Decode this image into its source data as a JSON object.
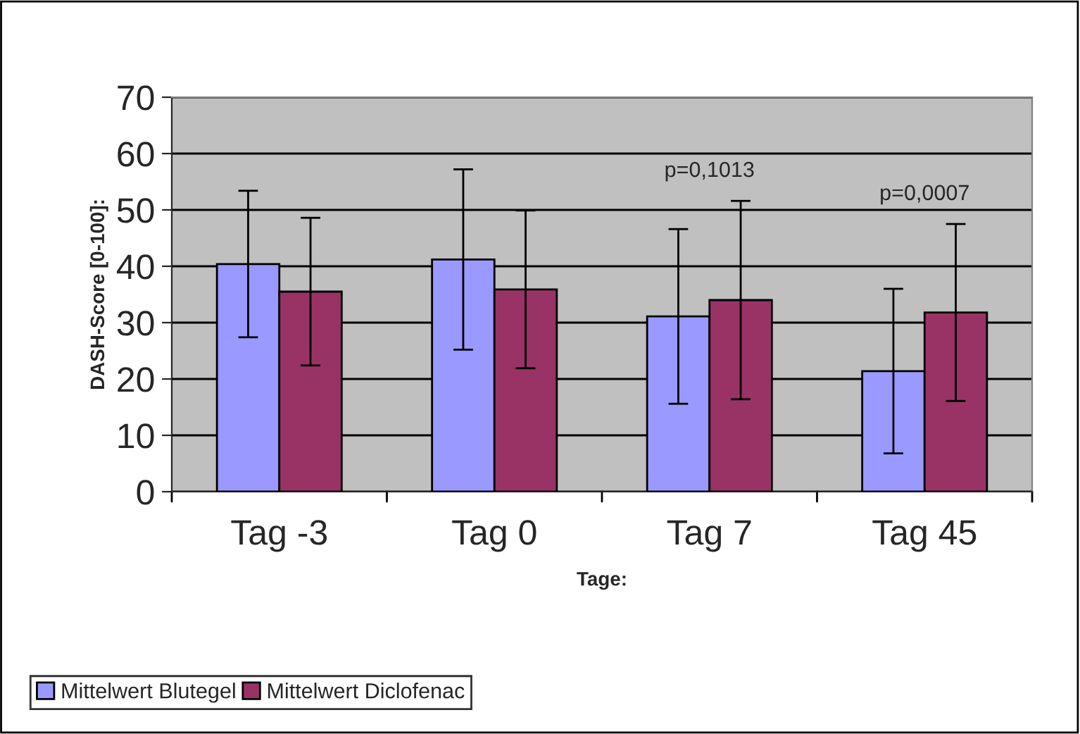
{
  "chart_data": {
    "type": "bar",
    "xlabel": "Tage:",
    "ylabel": "DASH-Score [0-100]:",
    "categories": [
      "Tag -3",
      "Tag 0",
      "Tag 7",
      "Tag 45"
    ],
    "series": [
      {
        "name": "Mittelwert Blutegel",
        "color": "#9999ff",
        "values": [
          40.4,
          41.2,
          31.1,
          21.4
        ],
        "errors": [
          13,
          16,
          15.5,
          14.6
        ]
      },
      {
        "name": "Mittelwert Diclofenac",
        "color": "#993366",
        "values": [
          35.5,
          35.9,
          34.0,
          31.8
        ],
        "errors": [
          13.1,
          14,
          17.6,
          15.7
        ]
      }
    ],
    "ylim": [
      0,
      70
    ],
    "yticks": [
      0,
      10,
      20,
      30,
      40,
      50,
      60,
      70
    ],
    "grid": "y",
    "legend": "bottom left",
    "annotations": [
      "p=0,1013",
      "p=0,0007"
    ]
  }
}
